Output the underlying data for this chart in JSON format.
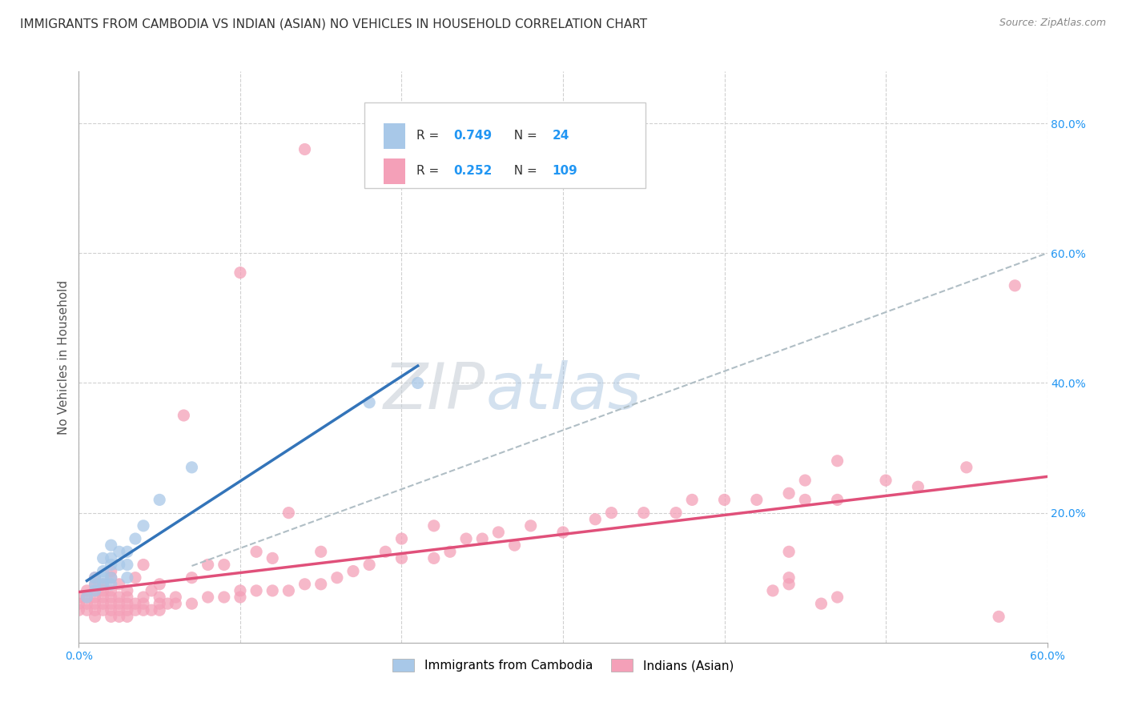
{
  "title": "IMMIGRANTS FROM CAMBODIA VS INDIAN (ASIAN) NO VEHICLES IN HOUSEHOLD CORRELATION CHART",
  "source": "Source: ZipAtlas.com",
  "ylabel": "No Vehicles in Household",
  "legend_label_1": "Immigrants from Cambodia",
  "legend_label_2": "Indians (Asian)",
  "R1": "0.749",
  "N1": "24",
  "R2": "0.252",
  "N2": "109",
  "color1": "#a8c8e8",
  "color2": "#f4a0b8",
  "regression_color1": "#3374b9",
  "regression_color2": "#e0507a",
  "dashed_color": "#b0bec5",
  "xlim": [
    0.0,
    0.6
  ],
  "ylim": [
    0.0,
    0.88
  ],
  "y_ticks_right": [
    0.2,
    0.4,
    0.6,
    0.8
  ],
  "y_tick_labels_right": [
    "20.0%",
    "40.0%",
    "60.0%",
    "80.0%"
  ],
  "watermark_zip": "ZIP",
  "watermark_atlas": "atlas",
  "background_color": "#ffffff",
  "grid_color": "#d0d0d0",
  "cambodia_x": [
    0.005,
    0.01,
    0.01,
    0.01,
    0.015,
    0.015,
    0.015,
    0.015,
    0.02,
    0.02,
    0.02,
    0.02,
    0.02,
    0.025,
    0.025,
    0.03,
    0.03,
    0.03,
    0.035,
    0.04,
    0.05,
    0.07,
    0.18,
    0.21
  ],
  "cambodia_y": [
    0.07,
    0.08,
    0.09,
    0.1,
    0.09,
    0.1,
    0.11,
    0.13,
    0.09,
    0.1,
    0.12,
    0.13,
    0.15,
    0.12,
    0.14,
    0.1,
    0.12,
    0.14,
    0.16,
    0.18,
    0.22,
    0.27,
    0.37,
    0.4
  ],
  "indian_x": [
    0.0,
    0.0,
    0.0,
    0.005,
    0.005,
    0.005,
    0.005,
    0.01,
    0.01,
    0.01,
    0.01,
    0.01,
    0.01,
    0.01,
    0.015,
    0.015,
    0.015,
    0.015,
    0.015,
    0.02,
    0.02,
    0.02,
    0.02,
    0.02,
    0.02,
    0.02,
    0.025,
    0.025,
    0.025,
    0.025,
    0.025,
    0.03,
    0.03,
    0.03,
    0.03,
    0.03,
    0.035,
    0.035,
    0.035,
    0.04,
    0.04,
    0.04,
    0.04,
    0.045,
    0.045,
    0.05,
    0.05,
    0.05,
    0.05,
    0.055,
    0.06,
    0.06,
    0.065,
    0.07,
    0.07,
    0.08,
    0.08,
    0.09,
    0.09,
    0.1,
    0.1,
    0.1,
    0.11,
    0.11,
    0.12,
    0.12,
    0.13,
    0.13,
    0.14,
    0.14,
    0.15,
    0.15,
    0.16,
    0.17,
    0.18,
    0.19,
    0.2,
    0.2,
    0.22,
    0.22,
    0.23,
    0.24,
    0.25,
    0.26,
    0.27,
    0.28,
    0.3,
    0.32,
    0.33,
    0.35,
    0.37,
    0.38,
    0.4,
    0.42,
    0.44,
    0.45,
    0.47,
    0.5,
    0.52,
    0.55,
    0.57,
    0.58,
    0.43,
    0.44,
    0.44,
    0.44,
    0.45,
    0.46,
    0.47,
    0.47
  ],
  "indian_y": [
    0.05,
    0.06,
    0.07,
    0.05,
    0.06,
    0.07,
    0.08,
    0.04,
    0.05,
    0.06,
    0.07,
    0.08,
    0.09,
    0.1,
    0.05,
    0.06,
    0.07,
    0.08,
    0.09,
    0.04,
    0.05,
    0.06,
    0.07,
    0.08,
    0.1,
    0.11,
    0.04,
    0.05,
    0.06,
    0.07,
    0.09,
    0.04,
    0.05,
    0.06,
    0.07,
    0.08,
    0.05,
    0.06,
    0.1,
    0.05,
    0.06,
    0.07,
    0.12,
    0.05,
    0.08,
    0.05,
    0.06,
    0.07,
    0.09,
    0.06,
    0.06,
    0.07,
    0.35,
    0.06,
    0.1,
    0.07,
    0.12,
    0.07,
    0.12,
    0.07,
    0.08,
    0.57,
    0.08,
    0.14,
    0.08,
    0.13,
    0.08,
    0.2,
    0.09,
    0.76,
    0.09,
    0.14,
    0.1,
    0.11,
    0.12,
    0.14,
    0.13,
    0.16,
    0.13,
    0.18,
    0.14,
    0.16,
    0.16,
    0.17,
    0.15,
    0.18,
    0.17,
    0.19,
    0.2,
    0.2,
    0.2,
    0.22,
    0.22,
    0.22,
    0.23,
    0.22,
    0.22,
    0.25,
    0.24,
    0.27,
    0.04,
    0.55,
    0.08,
    0.09,
    0.1,
    0.14,
    0.25,
    0.06,
    0.28,
    0.07
  ]
}
